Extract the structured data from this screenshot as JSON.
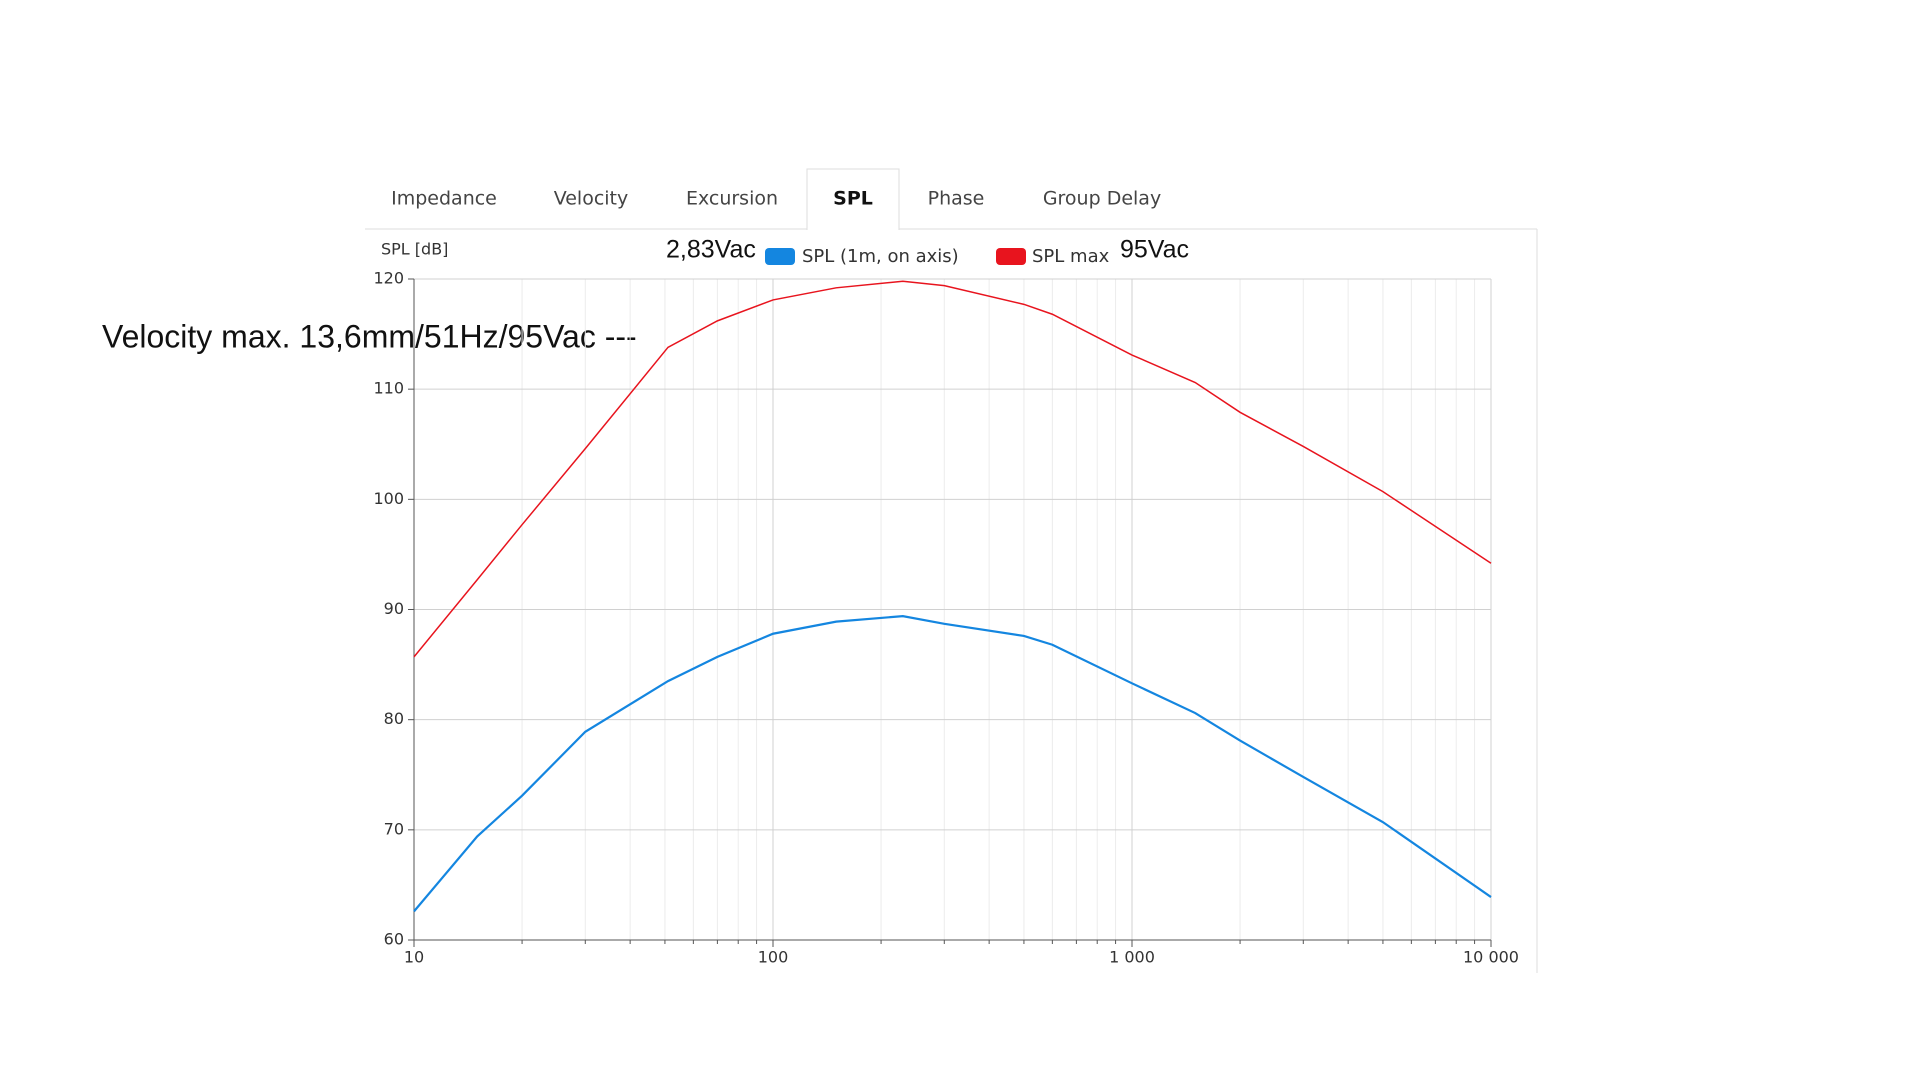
{
  "tabs": [
    {
      "label": "Impedance",
      "active": false
    },
    {
      "label": "Velocity",
      "active": false
    },
    {
      "label": "Excursion",
      "active": false
    },
    {
      "label": "SPL",
      "active": true
    },
    {
      "label": "Phase",
      "active": false
    },
    {
      "label": "Group Delay",
      "active": false
    }
  ],
  "chart_data": {
    "type": "line",
    "y_label": "SPL [dB]",
    "annotations": [
      "2,83Vac",
      "95Vac",
      "Velocity max. 13,6mm/51Hz/95Vac ---"
    ],
    "x": [
      10,
      15,
      20,
      30,
      51,
      70,
      100,
      150,
      230,
      300,
      500,
      600,
      1000,
      1500,
      2000,
      3000,
      5000,
      10000
    ],
    "series": [
      {
        "name": "SPL (1m, on axis)",
        "color": "#1486e0",
        "values": [
          62.6,
          69.4,
          73.1,
          78.9,
          83.5,
          85.7,
          87.8,
          88.9,
          89.4,
          88.7,
          87.6,
          86.8,
          83.3,
          80.6,
          78.1,
          74.8,
          70.7,
          63.9
        ]
      },
      {
        "name": "SPL max",
        "color": "#e8141e",
        "values": [
          85.7,
          92.7,
          97.7,
          104.6,
          113.8,
          116.2,
          118.1,
          119.2,
          119.8,
          119.4,
          117.7,
          116.8,
          113.1,
          110.6,
          107.9,
          104.8,
          100.7,
          94.2
        ]
      }
    ],
    "xscale": "log",
    "xlim": [
      10,
      10000
    ],
    "xticks": [
      10,
      100,
      {
        "value": 1000,
        "label": "1 000"
      },
      {
        "value": 10000,
        "label": "10 000"
      }
    ],
    "ylim": [
      60,
      120
    ],
    "yticks": [
      60,
      70,
      80,
      90,
      100,
      110,
      120
    ],
    "grid": true
  }
}
